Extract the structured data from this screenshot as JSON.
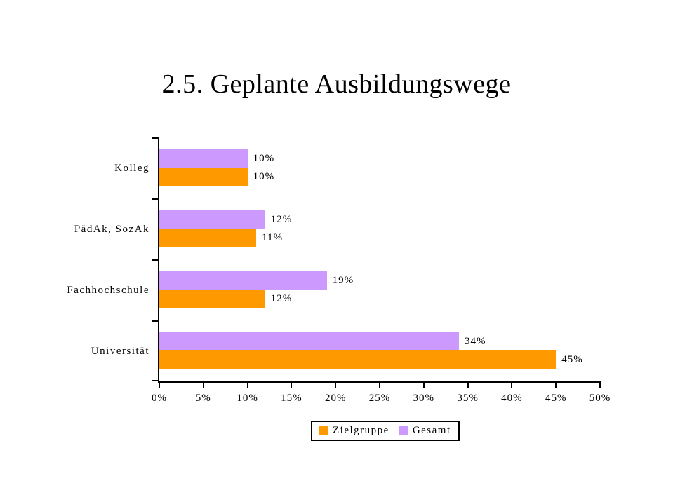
{
  "title": "2.5. Geplante Ausbildungswege",
  "chart_data": {
    "type": "bar",
    "orientation": "horizontal",
    "title": "2.5. Geplante Ausbildungswege",
    "categories": [
      "Kolleg",
      "PädAk, SozAk",
      "Fachhochschule",
      "Universität"
    ],
    "series": [
      {
        "name": "Zielgruppe",
        "color": "#FF9900",
        "values": [
          10,
          11,
          12,
          45
        ]
      },
      {
        "name": "Gesamt",
        "color": "#CC99FF",
        "values": [
          10,
          12,
          19,
          34
        ]
      }
    ],
    "row_order_top_to_bottom_per_category": [
      "Gesamt",
      "Zielgruppe"
    ],
    "data_labels": true,
    "value_suffix": "%",
    "x_ticks": [
      "0%",
      "5%",
      "10%",
      "15%",
      "20%",
      "25%",
      "30%",
      "35%",
      "40%",
      "45%",
      "50%"
    ],
    "xlim": [
      0,
      50
    ],
    "xlabel": "",
    "ylabel": "",
    "grid": false,
    "legend_position": "bottom",
    "background_color": "#FFFFFF",
    "text_color": "#000000",
    "axis_color": "#000000"
  },
  "legend": {
    "items": [
      {
        "label": "Zielgruppe",
        "color": "#FF9900"
      },
      {
        "label": "Gesamt",
        "color": "#CC99FF"
      }
    ]
  }
}
